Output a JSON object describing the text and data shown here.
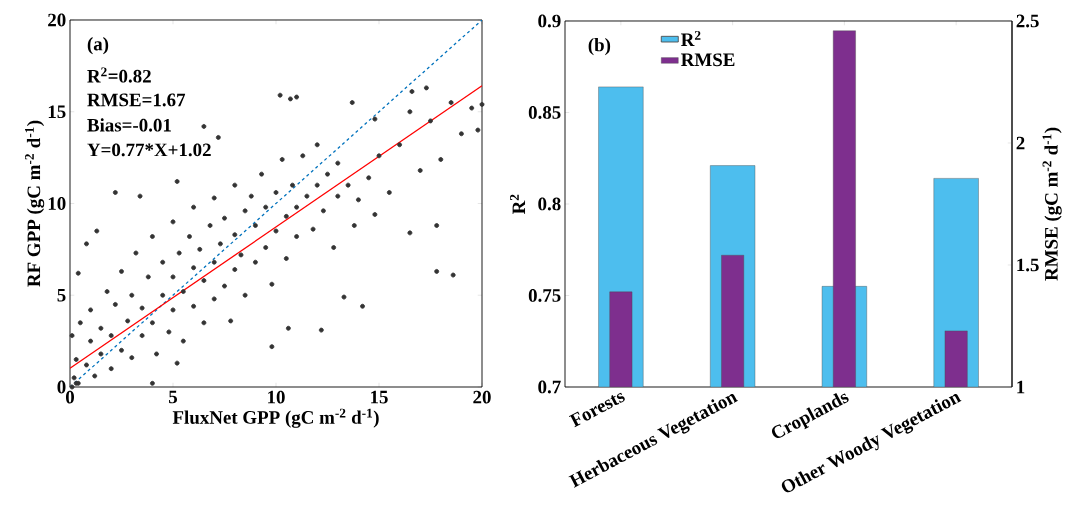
{
  "chart_data": [
    {
      "type": "scatter",
      "xlabel": "FluxNet GPP (gC m$^{-2}$ d$^{-1}$)",
      "ylabel": "RF GPP (gC m$^{-2}$ d$^{-1}$)",
      "annotations": [
        "(a)",
        "R$^{2}$=0.82",
        "RMSE=1.67",
        "Bias=-0.01",
        "Y=0.77*X+1.02"
      ],
      "xlim": [
        0,
        20
      ],
      "ylim": [
        0,
        20
      ],
      "xticks": [
        0,
        5,
        10,
        15,
        20
      ],
      "yticks": [
        0,
        5,
        10,
        15,
        20
      ],
      "series": [
        {
          "type": "scatter",
          "color": "#333333",
          "x": [
            0.1,
            0.3,
            0.2,
            0.3,
            0.1,
            0.5,
            0.4,
            0.8,
            1,
            1,
            1.2,
            1.5,
            1.5,
            1.8,
            2,
            2,
            2.2,
            2.5,
            2.5,
            2.8,
            3,
            3,
            3.2,
            3.5,
            3.5,
            3.8,
            4,
            4,
            4.2,
            4.5,
            4.5,
            4.8,
            5,
            5,
            5,
            5.3,
            5.5,
            5.5,
            5.8,
            6,
            6,
            6,
            6.3,
            6.5,
            6.5,
            6.8,
            7,
            7,
            7,
            7.3,
            7.5,
            7.5,
            7.8,
            8,
            8,
            8,
            8.3,
            8.5,
            8.5,
            8.8,
            9,
            9,
            9.3,
            9.5,
            9.5,
            9.8,
            10,
            10,
            10.3,
            10.5,
            10.5,
            10.8,
            11,
            11,
            11.3,
            11.5,
            11.8,
            12,
            12,
            12.3,
            12.5,
            12.8,
            13,
            13,
            13.5,
            13.8,
            14,
            14.5,
            14.8,
            15,
            15.5,
            16,
            16.5,
            17,
            17.5,
            17.8,
            18,
            18.5,
            19,
            19.5,
            19.8,
            20,
            10.2,
            10.7,
            11,
            6.5,
            7.2,
            5.2,
            3.4,
            2.2,
            1.3,
            0.4,
            0.8,
            13.7,
            16.6,
            17.3,
            14.8,
            16.5,
            12.2,
            9.8,
            10.6,
            14.2,
            13.3,
            17.8,
            18.6,
            4,
            5.2
          ],
          "values": [
            0,
            0.2,
            0.5,
            1.5,
            2.8,
            3.5,
            0.2,
            1.2,
            2.5,
            4.2,
            0.6,
            1.8,
            3.2,
            5.2,
            1,
            2.8,
            4.5,
            2,
            6.3,
            3.6,
            1.6,
            5,
            7.3,
            2.8,
            4.3,
            6,
            3.5,
            8.2,
            1.8,
            5,
            6.8,
            3,
            4.2,
            6,
            9,
            7.3,
            2.5,
            5.2,
            8.2,
            4.4,
            6.5,
            9.8,
            7.5,
            3.5,
            5.8,
            8.8,
            4.8,
            6.8,
            10.3,
            7.8,
            5.5,
            9.2,
            3.6,
            6.4,
            8.3,
            11,
            7.2,
            9.6,
            5,
            10.4,
            6.8,
            8.8,
            11.6,
            7.6,
            9.8,
            5.6,
            8.5,
            10.6,
            12.4,
            9.3,
            7,
            11,
            8.2,
            9.8,
            12.6,
            10.4,
            8.6,
            11,
            13.2,
            9.6,
            11.6,
            7.6,
            10.4,
            12.2,
            11,
            8.8,
            10.2,
            11.4,
            9.4,
            12.6,
            10.6,
            13.2,
            8.4,
            11.8,
            14.5,
            8.8,
            12.4,
            15.5,
            13.8,
            15.2,
            14,
            15.4,
            15.9,
            15.7,
            15.8,
            14.2,
            13.6,
            11.2,
            10.4,
            10.6,
            8.5,
            6.2,
            7.8,
            15.5,
            16.1,
            16.3,
            14.6,
            15,
            3.1,
            2.2,
            3.2,
            4.4,
            4.9,
            6.3,
            6.1,
            0.2,
            1.3
          ]
        },
        {
          "type": "line",
          "color": "#0072bd",
          "line_style": "dashed",
          "x": [
            0,
            20
          ],
          "values": [
            0,
            20
          ]
        },
        {
          "type": "line",
          "color": "#ff0000",
          "line_style": "solid",
          "x": [
            0,
            20
          ],
          "values": [
            1.02,
            16.42
          ]
        }
      ]
    },
    {
      "type": "bar",
      "ylabel": "R$^{2}$",
      "y2label": "RMSE (gC m$^{-2}$ d$^{-1}$)",
      "annotations": [
        "(b)"
      ],
      "categories": [
        "Forests",
        "Herbaceous Vegetation",
        "Croplands",
        "Other Woody Vegetation"
      ],
      "ylim": [
        0.7,
        0.9
      ],
      "yticks": [
        0.7,
        0.75,
        0.8,
        0.85,
        0.9
      ],
      "y2lim": [
        1,
        2.5
      ],
      "y2ticks": [
        1,
        1.5,
        2,
        2.5
      ],
      "legend": "top",
      "series": [
        {
          "name": "R$^{2}$",
          "color": "#4dbeee",
          "values": [
            0.864,
            0.821,
            0.755,
            0.814
          ]
        },
        {
          "name": "RMSE",
          "color": "#7e2f8e",
          "axis": "y2",
          "values": [
            1.39,
            1.54,
            2.46,
            1.23
          ]
        }
      ]
    }
  ]
}
